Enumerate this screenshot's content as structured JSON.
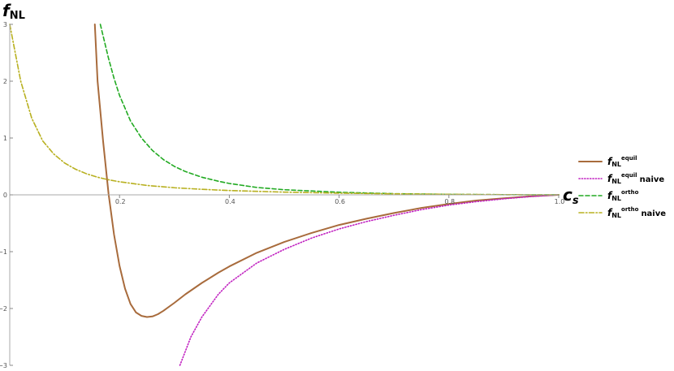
{
  "chart_data": {
    "type": "line",
    "xlabel": "c",
    "xlabel_sub": "s",
    "ylabel": "f",
    "ylabel_sub": "NL",
    "xlim": [
      0,
      1.0
    ],
    "ylim": [
      -3,
      3
    ],
    "x_ticks": [
      {
        "value": 0.2,
        "label": "0.2"
      },
      {
        "value": 0.4,
        "label": "0.4"
      },
      {
        "value": 0.6,
        "label": "0.6"
      },
      {
        "value": 0.8,
        "label": "0.8"
      },
      {
        "value": 1.0,
        "label": "1.0"
      }
    ],
    "y_ticks": [
      {
        "value": -3,
        "label": "−3"
      },
      {
        "value": -2,
        "label": "−2"
      },
      {
        "value": -1,
        "label": "−1"
      },
      {
        "value": 0,
        "label": "0"
      },
      {
        "value": 1,
        "label": "1"
      },
      {
        "value": 2,
        "label": "2"
      },
      {
        "value": 3,
        "label": "3"
      }
    ],
    "legend_position": "right",
    "series": [
      {
        "name_main": "f",
        "name_sub": "NL",
        "name_sup": "equil",
        "name_suffix": "",
        "color": "#a86b3c",
        "dash": "solid",
        "x": [
          0.155,
          0.16,
          0.17,
          0.18,
          0.19,
          0.2,
          0.21,
          0.22,
          0.23,
          0.24,
          0.25,
          0.26,
          0.27,
          0.28,
          0.3,
          0.32,
          0.35,
          0.38,
          0.4,
          0.45,
          0.5,
          0.55,
          0.6,
          0.65,
          0.7,
          0.75,
          0.8,
          0.85,
          0.9,
          0.95,
          1.0
        ],
        "y": [
          3.0,
          2.0,
          0.95,
          0.02,
          -0.7,
          -1.25,
          -1.65,
          -1.92,
          -2.07,
          -2.13,
          -2.15,
          -2.14,
          -2.1,
          -2.04,
          -1.9,
          -1.75,
          -1.55,
          -1.37,
          -1.26,
          -1.02,
          -0.83,
          -0.67,
          -0.53,
          -0.42,
          -0.32,
          -0.23,
          -0.16,
          -0.1,
          -0.06,
          -0.025,
          0.0
        ]
      },
      {
        "name_main": "f",
        "name_sub": "NL",
        "name_sup": "equil",
        "name_suffix": "naive",
        "color": "#c020c0",
        "dash": "dotted",
        "x": [
          0.31,
          0.33,
          0.35,
          0.38,
          0.4,
          0.45,
          0.5,
          0.55,
          0.6,
          0.65,
          0.7,
          0.75,
          0.8,
          0.85,
          0.9,
          0.95,
          1.0
        ],
        "y": [
          -3.0,
          -2.5,
          -2.15,
          -1.75,
          -1.55,
          -1.2,
          -0.96,
          -0.76,
          -0.6,
          -0.47,
          -0.36,
          -0.26,
          -0.18,
          -0.12,
          -0.07,
          -0.03,
          0.0
        ]
      },
      {
        "name_main": "f",
        "name_sub": "NL",
        "name_sup": "ortho",
        "name_suffix": "",
        "color": "#22aa22",
        "dash": "dashed",
        "x": [
          0.165,
          0.17,
          0.18,
          0.19,
          0.2,
          0.22,
          0.24,
          0.26,
          0.28,
          0.3,
          0.32,
          0.35,
          0.38,
          0.4,
          0.45,
          0.5,
          0.6,
          0.7,
          0.8,
          0.9,
          1.0
        ],
        "y": [
          3.0,
          2.8,
          2.4,
          2.05,
          1.75,
          1.3,
          1.0,
          0.78,
          0.62,
          0.5,
          0.41,
          0.31,
          0.24,
          0.2,
          0.13,
          0.09,
          0.045,
          0.02,
          0.008,
          0.003,
          0.0
        ]
      },
      {
        "name_main": "f",
        "name_sub": "NL",
        "name_sup": "ortho",
        "name_suffix": "naive",
        "color": "#b8b020",
        "dash": "dashdot",
        "x": [
          0.0,
          0.02,
          0.04,
          0.06,
          0.08,
          0.1,
          0.12,
          0.14,
          0.16,
          0.18,
          0.2,
          0.25,
          0.3,
          0.35,
          0.4,
          0.5,
          0.6,
          0.7,
          0.8,
          0.9,
          1.0
        ],
        "y": [
          3.0,
          2.0,
          1.35,
          0.95,
          0.72,
          0.56,
          0.45,
          0.37,
          0.31,
          0.265,
          0.23,
          0.165,
          0.125,
          0.097,
          0.076,
          0.048,
          0.03,
          0.018,
          0.009,
          0.003,
          0.0
        ]
      }
    ]
  }
}
